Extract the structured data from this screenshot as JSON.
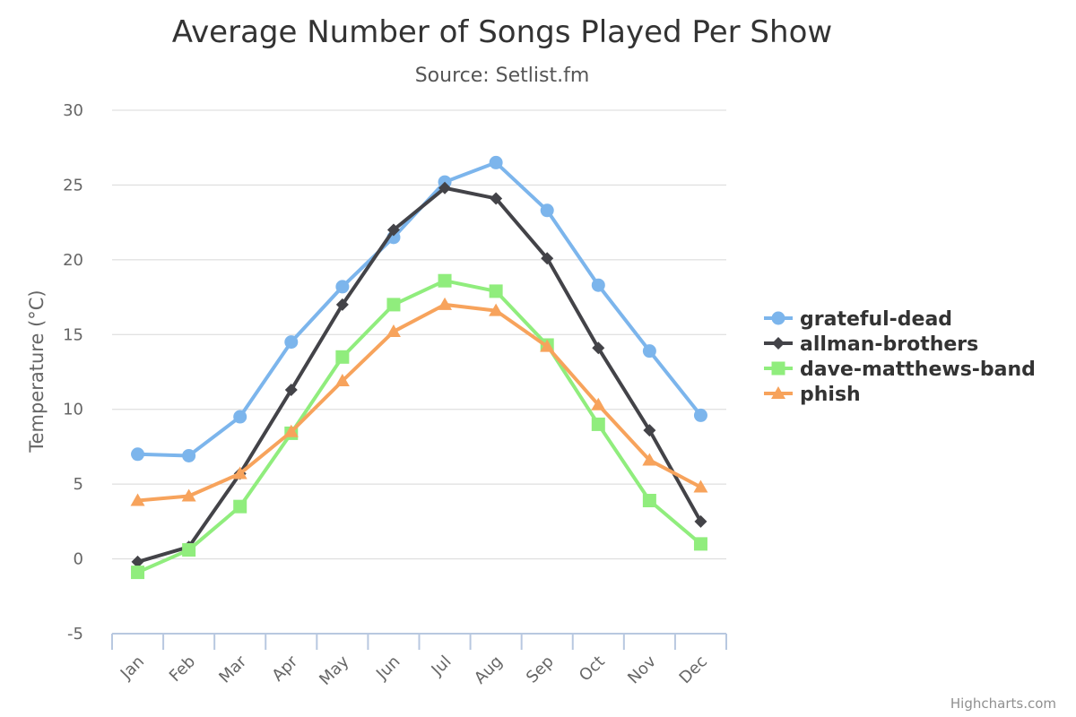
{
  "chart_data": {
    "type": "line",
    "title": "Average Number of Songs Played Per Show",
    "subtitle": "Source: Setlist.fm",
    "xlabel": "",
    "ylabel": "Temperature (°C)",
    "categories": [
      "Jan",
      "Feb",
      "Mar",
      "Apr",
      "May",
      "Jun",
      "Jul",
      "Aug",
      "Sep",
      "Oct",
      "Nov",
      "Dec"
    ],
    "ylim": [
      -5,
      30
    ],
    "yticks": [
      -5,
      0,
      5,
      10,
      15,
      20,
      25,
      30
    ],
    "grid": true,
    "legend_position": "right",
    "series": [
      {
        "name": "grateful-dead",
        "marker": "circle",
        "color": "#7cb5ec",
        "values": [
          7.0,
          6.9,
          9.5,
          14.5,
          18.2,
          21.5,
          25.2,
          26.5,
          23.3,
          18.3,
          13.9,
          9.6
        ]
      },
      {
        "name": "allman-brothers",
        "marker": "diamond",
        "color": "#434348",
        "values": [
          -0.2,
          0.8,
          5.7,
          11.3,
          17.0,
          22.0,
          24.8,
          24.1,
          20.1,
          14.1,
          8.6,
          2.5
        ]
      },
      {
        "name": "dave-matthews-band",
        "marker": "square",
        "color": "#90ed7d",
        "values": [
          -0.9,
          0.6,
          3.5,
          8.4,
          13.5,
          17.0,
          18.6,
          17.9,
          14.3,
          9.0,
          3.9,
          1.0
        ]
      },
      {
        "name": "phish",
        "marker": "triangle",
        "color": "#f7a35c",
        "values": [
          3.9,
          4.2,
          5.7,
          8.5,
          11.9,
          15.2,
          17.0,
          16.6,
          14.2,
          10.3,
          6.6,
          4.8
        ]
      }
    ]
  },
  "credits": "Highcharts.com"
}
